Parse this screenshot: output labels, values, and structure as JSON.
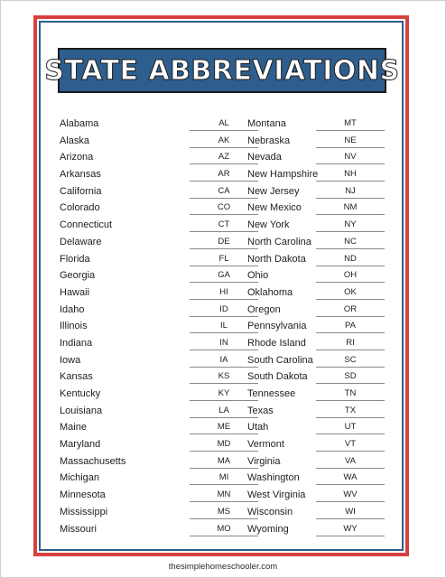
{
  "title": "STATE ABBREVIATIONS",
  "footer": "thesimplehomeschooler.com",
  "colors": {
    "red_frame": "#d8403f",
    "blue_frame": "#2d5d8c",
    "title_bg": "#2e5e8e"
  },
  "left_column": [
    {
      "state": "Alabama",
      "abbr": "AL"
    },
    {
      "state": "Alaska",
      "abbr": "AK"
    },
    {
      "state": "Arizona",
      "abbr": "AZ"
    },
    {
      "state": "Arkansas",
      "abbr": "AR"
    },
    {
      "state": "California",
      "abbr": "CA"
    },
    {
      "state": "Colorado",
      "abbr": "CO"
    },
    {
      "state": "Connecticut",
      "abbr": "CT"
    },
    {
      "state": "Delaware",
      "abbr": "DE"
    },
    {
      "state": "Florida",
      "abbr": "FL"
    },
    {
      "state": "Georgia",
      "abbr": "GA"
    },
    {
      "state": "Hawaii",
      "abbr": "HI"
    },
    {
      "state": "Idaho",
      "abbr": "ID"
    },
    {
      "state": "Illinois",
      "abbr": "IL"
    },
    {
      "state": "Indiana",
      "abbr": "IN"
    },
    {
      "state": "Iowa",
      "abbr": "IA"
    },
    {
      "state": "Kansas",
      "abbr": "KS"
    },
    {
      "state": "Kentucky",
      "abbr": "KY"
    },
    {
      "state": "Louisiana",
      "abbr": "LA"
    },
    {
      "state": "Maine",
      "abbr": "ME"
    },
    {
      "state": "Maryland",
      "abbr": "MD"
    },
    {
      "state": "Massachusetts",
      "abbr": "MA"
    },
    {
      "state": "Michigan",
      "abbr": "MI"
    },
    {
      "state": "Minnesota",
      "abbr": "MN"
    },
    {
      "state": "Mississippi",
      "abbr": "MS"
    },
    {
      "state": "Missouri",
      "abbr": "MO"
    }
  ],
  "right_column": [
    {
      "state": "Montana",
      "abbr": "MT"
    },
    {
      "state": "Nebraska",
      "abbr": "NE"
    },
    {
      "state": "Nevada",
      "abbr": "NV"
    },
    {
      "state": "New Hampshire",
      "abbr": "NH"
    },
    {
      "state": "New Jersey",
      "abbr": "NJ"
    },
    {
      "state": "New Mexico",
      "abbr": "NM"
    },
    {
      "state": "New York",
      "abbr": "NY"
    },
    {
      "state": "North Carolina",
      "abbr": "NC"
    },
    {
      "state": "North Dakota",
      "abbr": "ND"
    },
    {
      "state": "Ohio",
      "abbr": "OH"
    },
    {
      "state": "Oklahoma",
      "abbr": "OK"
    },
    {
      "state": "Oregon",
      "abbr": "OR"
    },
    {
      "state": "Pennsylvania",
      "abbr": "PA"
    },
    {
      "state": "Rhode Island",
      "abbr": "RI"
    },
    {
      "state": "South Carolina",
      "abbr": "SC"
    },
    {
      "state": "South Dakota",
      "abbr": "SD"
    },
    {
      "state": "Tennessee",
      "abbr": "TN"
    },
    {
      "state": "Texas",
      "abbr": "TX"
    },
    {
      "state": "Utah",
      "abbr": "UT"
    },
    {
      "state": "Vermont",
      "abbr": "VT"
    },
    {
      "state": "Virginia",
      "abbr": "VA"
    },
    {
      "state": "Washington",
      "abbr": "WA"
    },
    {
      "state": "West Virginia",
      "abbr": "WV"
    },
    {
      "state": "Wisconsin",
      "abbr": "WI"
    },
    {
      "state": "Wyoming",
      "abbr": "WY"
    }
  ]
}
